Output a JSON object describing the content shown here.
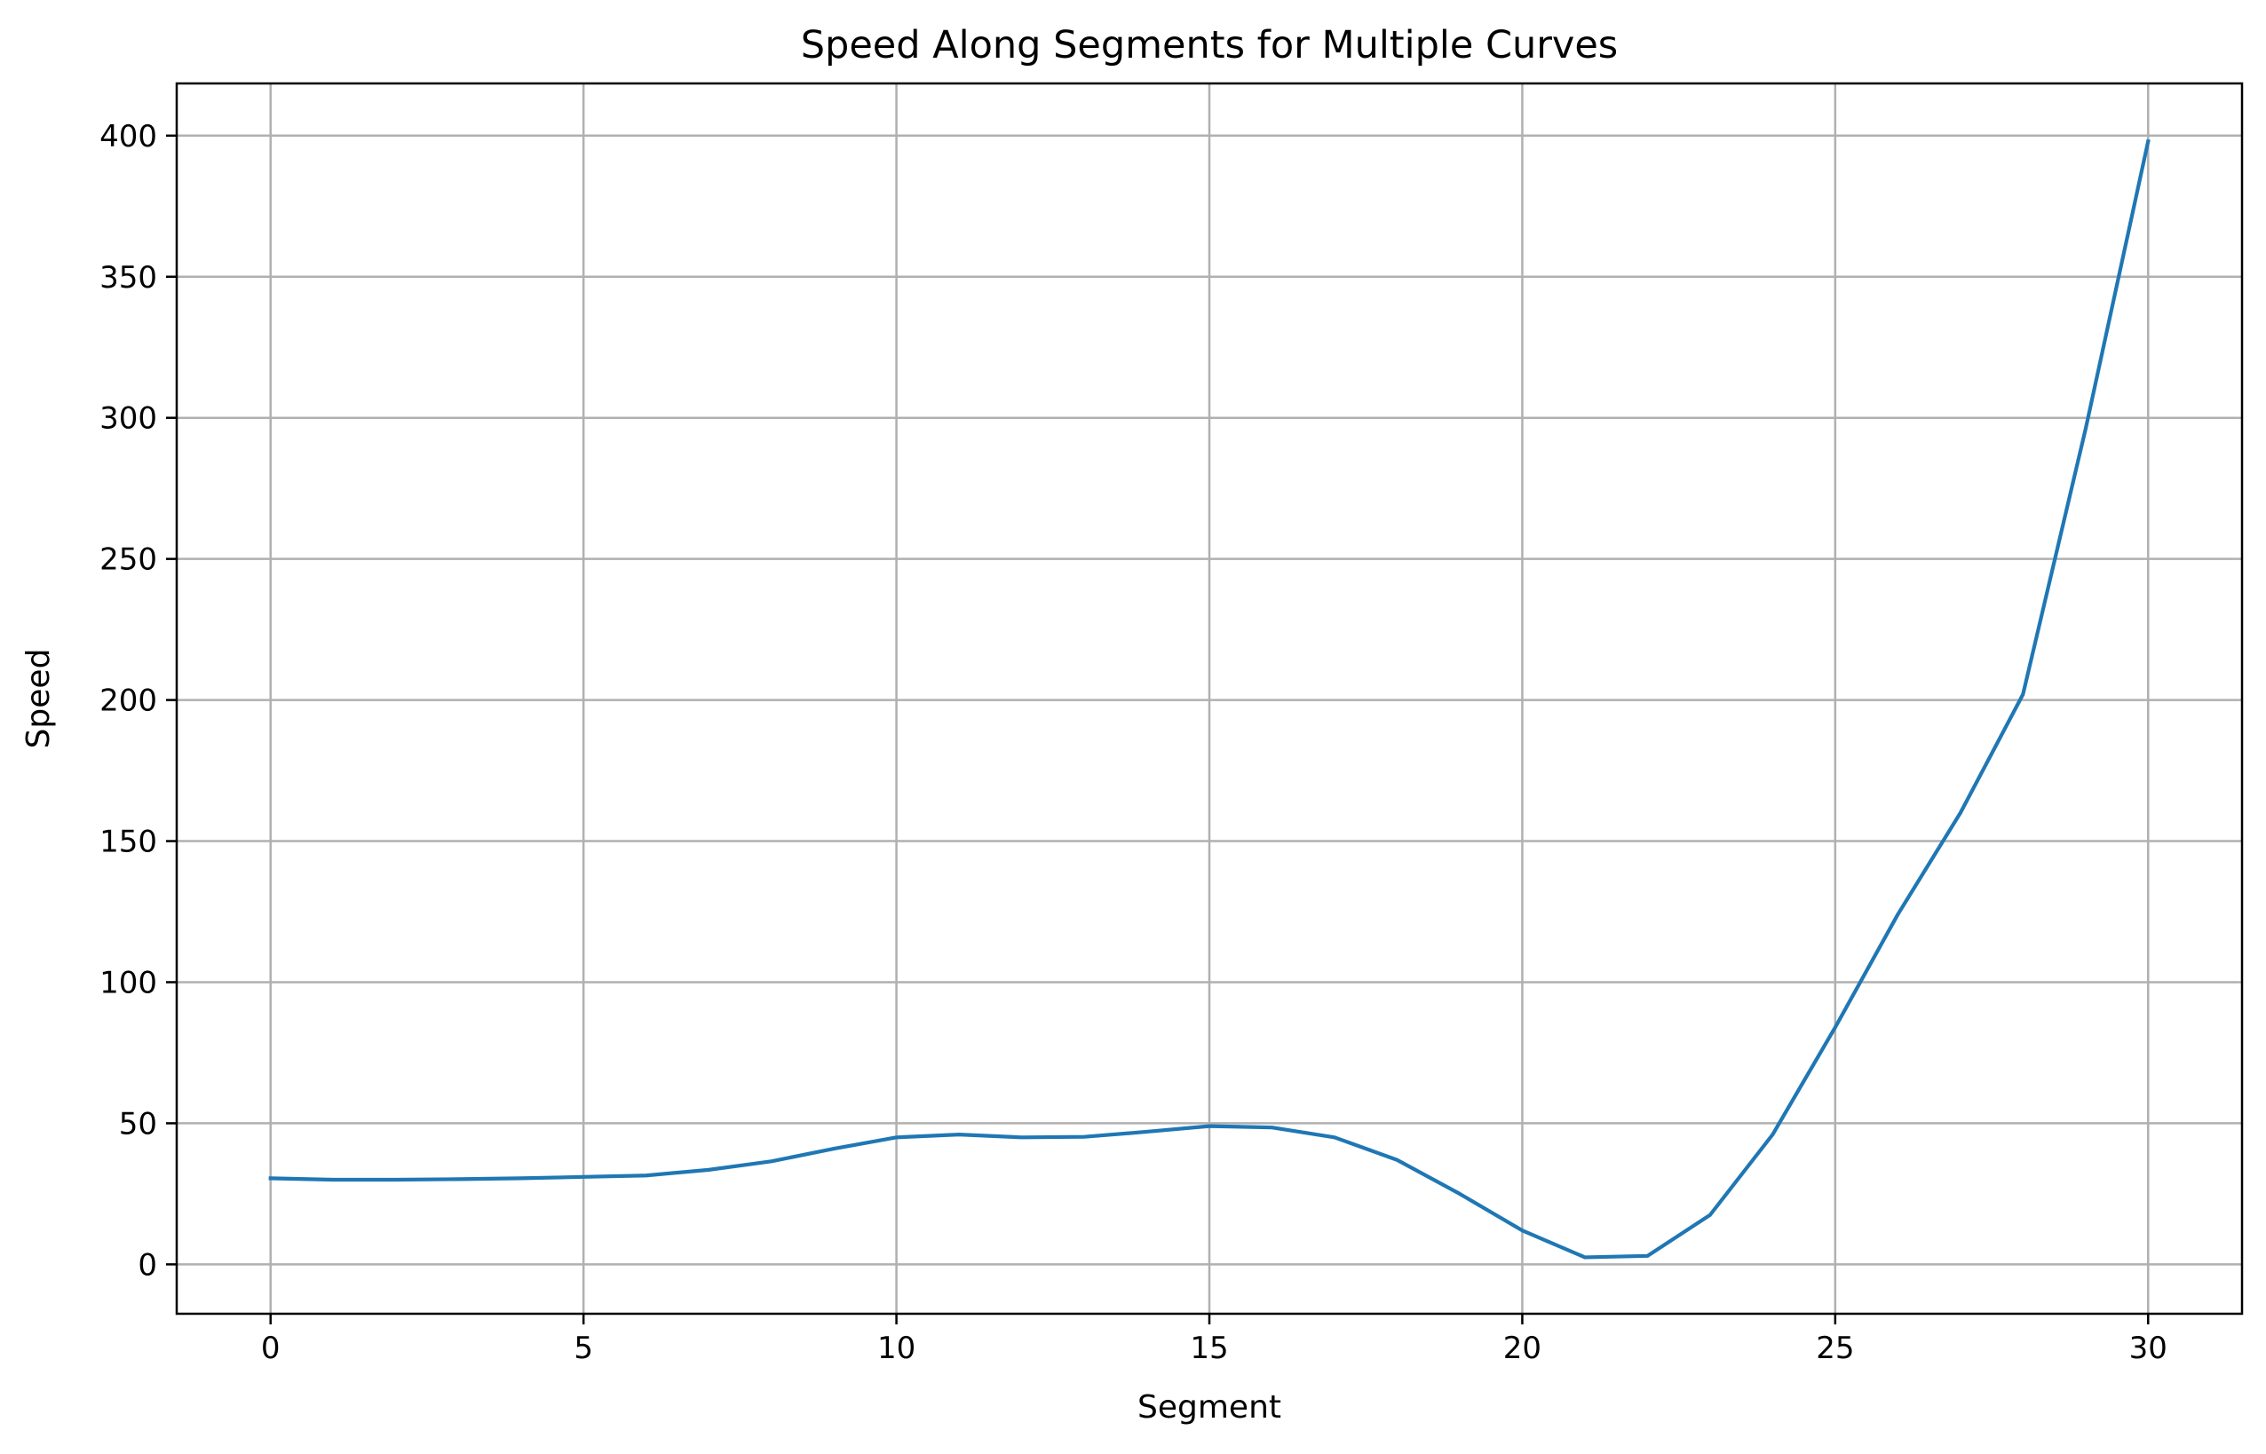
{
  "chart_data": {
    "type": "line",
    "title": "Speed Along Segments for Multiple Curves",
    "xlabel": "Segment",
    "ylabel": "Speed",
    "xlim": [
      -1.5,
      31.5
    ],
    "ylim": [
      -17.5,
      418.5
    ],
    "xticks": [
      0,
      5,
      10,
      15,
      20,
      25,
      30
    ],
    "yticks": [
      0,
      50,
      100,
      150,
      200,
      250,
      300,
      350,
      400
    ],
    "xtick_labels": [
      "0",
      "5",
      "10",
      "15",
      "20",
      "25",
      "30"
    ],
    "ytick_labels": [
      "0",
      "50",
      "100",
      "150",
      "200",
      "250",
      "300",
      "350",
      "400"
    ],
    "grid": true,
    "series": [
      {
        "color": "#1f77b4",
        "x": [
          0,
          1,
          2,
          3,
          4,
          5,
          6,
          7,
          8,
          9,
          10,
          11,
          12,
          13,
          14,
          15,
          16,
          17,
          18,
          19,
          20,
          21,
          22,
          23,
          24,
          25,
          26,
          27,
          28,
          29,
          30
        ],
        "values": [
          30.5,
          30,
          30,
          30.2,
          30.5,
          31,
          31.5,
          33.5,
          36.5,
          41,
          45,
          46,
          45,
          45.2,
          47,
          49,
          48.5,
          45,
          37,
          25,
          12,
          2.5,
          3,
          17.5,
          46,
          84,
          124,
          160,
          202,
          296,
          398
        ]
      }
    ]
  }
}
